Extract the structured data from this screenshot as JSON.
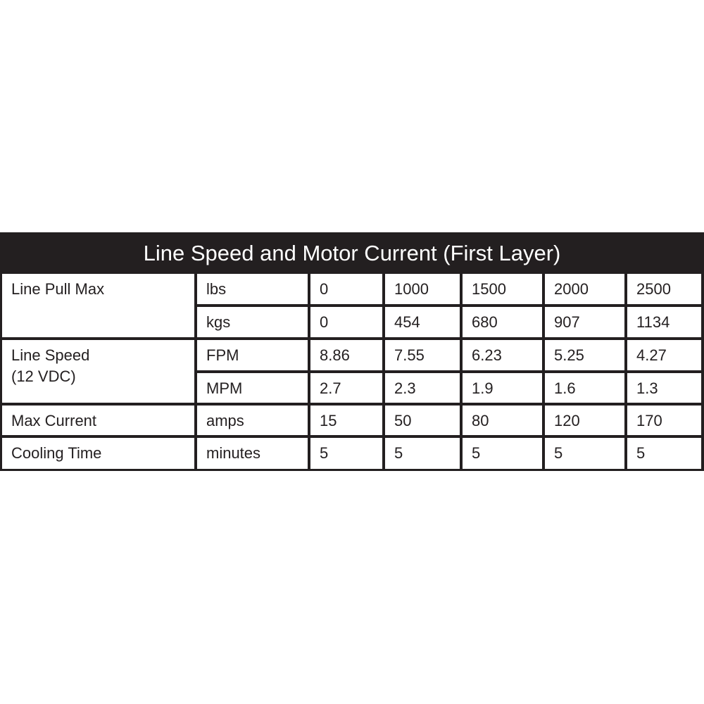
{
  "title": "Line Speed and Motor Current (First Layer)",
  "rows": [
    {
      "label": "Line Pull Max",
      "label2": "",
      "unit": "lbs",
      "values": [
        "0",
        "1000",
        "1500",
        "2000",
        "2500"
      ]
    },
    {
      "unit": "kgs",
      "values": [
        "0",
        "454",
        "680",
        "907",
        "1134"
      ]
    },
    {
      "label": "Line Speed",
      "label2": "(12 VDC)",
      "unit": "FPM",
      "values": [
        "8.86",
        "7.55",
        "6.23",
        "5.25",
        "4.27"
      ]
    },
    {
      "unit": "MPM",
      "values": [
        "2.7",
        "2.3",
        "1.9",
        "1.6",
        "1.3"
      ]
    },
    {
      "label": "Max Current",
      "unit": "amps",
      "values": [
        "15",
        "50",
        "80",
        "120",
        "170"
      ]
    },
    {
      "label": "Cooling Time",
      "unit": "minutes",
      "values": [
        "5",
        "5",
        "5",
        "5",
        "5"
      ]
    }
  ],
  "colors": {
    "header_bg": "#231f20",
    "header_text": "#ffffff"
  }
}
